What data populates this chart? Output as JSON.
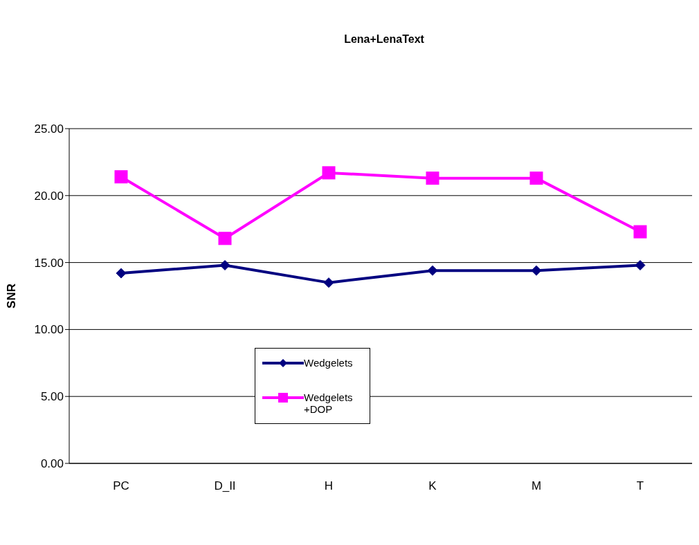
{
  "chart_data": {
    "type": "line",
    "title": "Lena+LenaText",
    "ylabel": "SNR",
    "categories": [
      "PC",
      "D_II",
      "H",
      "K",
      "M",
      "T"
    ],
    "series": [
      {
        "name": "Wedgelets",
        "color": "#000080",
        "marker": "diamond",
        "values": [
          14.2,
          14.8,
          13.5,
          14.4,
          14.4,
          14.8
        ]
      },
      {
        "name": "Wedgelets +DOP",
        "color": "#ff00ff",
        "marker": "square",
        "values": [
          21.4,
          16.8,
          21.7,
          21.3,
          21.3,
          17.3
        ]
      }
    ],
    "ylim": [
      0,
      25
    ],
    "yticks": [
      {
        "value": 0,
        "label": "0.00"
      },
      {
        "value": 5,
        "label": "5.00"
      },
      {
        "value": 10,
        "label": "10.00"
      },
      {
        "value": 15,
        "label": "15.00"
      },
      {
        "value": 20,
        "label": "20.00"
      },
      {
        "value": 25,
        "label": "25.00"
      }
    ],
    "grid": "y",
    "legend": "bottom left"
  }
}
